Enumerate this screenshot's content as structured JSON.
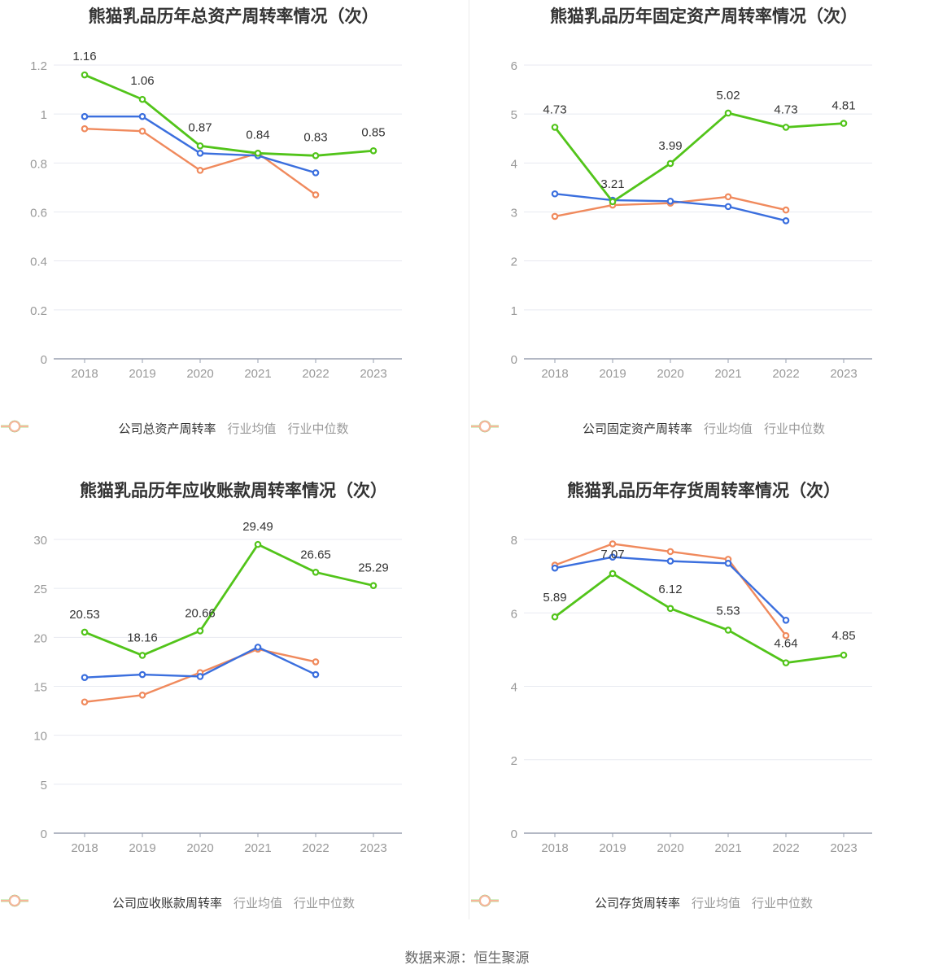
{
  "colors": {
    "company": "#52c41a",
    "industry_avg": "#3b6fde",
    "industry_median": "#f08a5d",
    "grid": "#e8eaf1",
    "axis": "#9aa0b0",
    "tick_text": "#999999",
    "label_text": "#333333"
  },
  "footer": {
    "source": "数据来源：恒生聚源"
  },
  "chart_data": [
    {
      "type": "line",
      "title": "熊猫乳品历年总资产周转率情况（次）",
      "categories": [
        "2018",
        "2019",
        "2020",
        "2021",
        "2022",
        "2023"
      ],
      "ylim": [
        0,
        1.2
      ],
      "yticks": [
        0,
        0.2,
        0.4,
        0.6,
        0.8,
        1,
        1.2
      ],
      "ytick_labels": [
        "0",
        "0.2",
        "0.4",
        "0.6",
        "0.8",
        "1",
        "1.2"
      ],
      "series": [
        {
          "name": "公司总资产周转率",
          "key": "company",
          "values": [
            1.16,
            1.06,
            0.87,
            0.84,
            0.83,
            0.85
          ],
          "labels": [
            "1.16",
            "1.06",
            "0.87",
            "0.84",
            "0.83",
            "0.85"
          ]
        },
        {
          "name": "行业均值",
          "key": "industry_avg",
          "values": [
            0.99,
            0.99,
            0.84,
            0.83,
            0.76,
            null
          ]
        },
        {
          "name": "行业中位数",
          "key": "industry_median",
          "values": [
            0.94,
            0.93,
            0.77,
            0.84,
            0.67,
            null
          ]
        }
      ]
    },
    {
      "type": "line",
      "title": "熊猫乳品历年固定资产周转率情况（次）",
      "categories": [
        "2018",
        "2019",
        "2020",
        "2021",
        "2022",
        "2023"
      ],
      "ylim": [
        0,
        6
      ],
      "yticks": [
        0,
        1,
        2,
        3,
        4,
        5,
        6
      ],
      "ytick_labels": [
        "0",
        "1",
        "2",
        "3",
        "4",
        "5",
        "6"
      ],
      "series": [
        {
          "name": "公司固定资产周转率",
          "key": "company",
          "values": [
            4.73,
            3.21,
            3.99,
            5.02,
            4.73,
            4.81
          ],
          "labels": [
            "4.73",
            "3.21",
            "3.99",
            "5.02",
            "4.73",
            "4.81"
          ]
        },
        {
          "name": "行业均值",
          "key": "industry_avg",
          "values": [
            3.37,
            3.24,
            3.22,
            3.11,
            2.82,
            null
          ]
        },
        {
          "name": "行业中位数",
          "key": "industry_median",
          "values": [
            2.91,
            3.14,
            3.18,
            3.31,
            3.04,
            null
          ]
        }
      ]
    },
    {
      "type": "line",
      "title": "熊猫乳品历年应收账款周转率情况（次）",
      "categories": [
        "2018",
        "2019",
        "2020",
        "2021",
        "2022",
        "2023"
      ],
      "ylim": [
        0,
        30
      ],
      "yticks": [
        0,
        5,
        10,
        15,
        20,
        25,
        30
      ],
      "ytick_labels": [
        "0",
        "5",
        "10",
        "15",
        "20",
        "25",
        "30"
      ],
      "series": [
        {
          "name": "公司应收账款周转率",
          "key": "company",
          "values": [
            20.53,
            18.16,
            20.66,
            29.49,
            26.65,
            25.29
          ],
          "labels": [
            "20.53",
            "18.16",
            "20.66",
            "29.49",
            "26.65",
            "25.29"
          ]
        },
        {
          "name": "行业均值",
          "key": "industry_avg",
          "values": [
            15.9,
            16.2,
            16.0,
            19.0,
            16.2,
            null
          ]
        },
        {
          "name": "行业中位数",
          "key": "industry_median",
          "values": [
            13.4,
            14.1,
            16.4,
            18.8,
            17.5,
            null
          ]
        }
      ]
    },
    {
      "type": "line",
      "title": "熊猫乳品历年存货周转率情况（次）",
      "categories": [
        "2018",
        "2019",
        "2020",
        "2021",
        "2022",
        "2023"
      ],
      "ylim": [
        0,
        8
      ],
      "yticks": [
        0,
        2,
        4,
        6,
        8
      ],
      "ytick_labels": [
        "0",
        "2",
        "4",
        "6",
        "8"
      ],
      "series": [
        {
          "name": "公司存货周转率",
          "key": "company",
          "values": [
            5.89,
            7.07,
            6.12,
            5.53,
            4.64,
            4.85
          ],
          "labels": [
            "5.89",
            "7.07",
            "6.12",
            "5.53",
            "4.64",
            "4.85"
          ]
        },
        {
          "name": "行业均值",
          "key": "industry_avg",
          "values": [
            7.22,
            7.52,
            7.41,
            7.35,
            5.8,
            null
          ]
        },
        {
          "name": "行业中位数",
          "key": "industry_median",
          "values": [
            7.3,
            7.88,
            7.67,
            7.46,
            5.38,
            null
          ]
        }
      ]
    }
  ]
}
